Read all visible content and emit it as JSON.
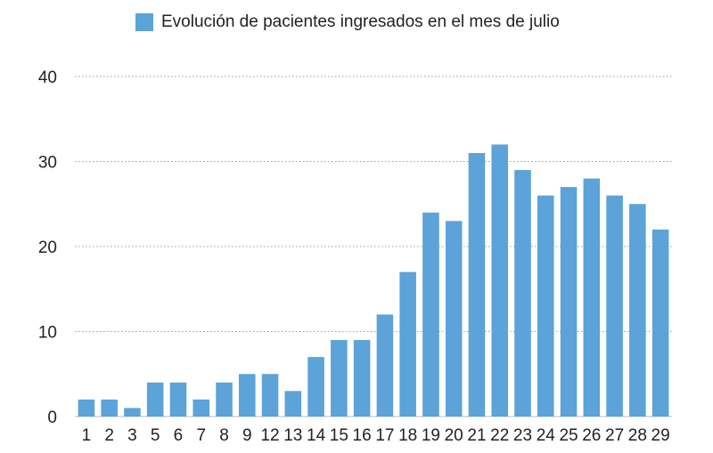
{
  "chart_data": {
    "type": "bar",
    "categories": [
      "1",
      "2",
      "3",
      "5",
      "6",
      "7",
      "8",
      "9",
      "12",
      "13",
      "14",
      "15",
      "16",
      "17",
      "18",
      "19",
      "20",
      "21",
      "22",
      "23",
      "24",
      "25",
      "26",
      "27",
      "28",
      "29"
    ],
    "series": [
      {
        "name": "Evolución de pacientes ingresados en el mes de julio",
        "values": [
          2,
          2,
          1,
          4,
          4,
          2,
          4,
          5,
          5,
          3,
          7,
          9,
          9,
          12,
          17,
          24,
          23,
          31,
          32,
          29,
          26,
          27,
          28,
          26,
          25,
          22
        ],
        "color": "#5ba3d9"
      }
    ],
    "title": "",
    "xlabel": "",
    "ylabel": "",
    "ylim": [
      0,
      40
    ],
    "yticks": [
      "0",
      "10",
      "20",
      "30",
      "40"
    ],
    "grid": true,
    "legend_position": "top"
  }
}
